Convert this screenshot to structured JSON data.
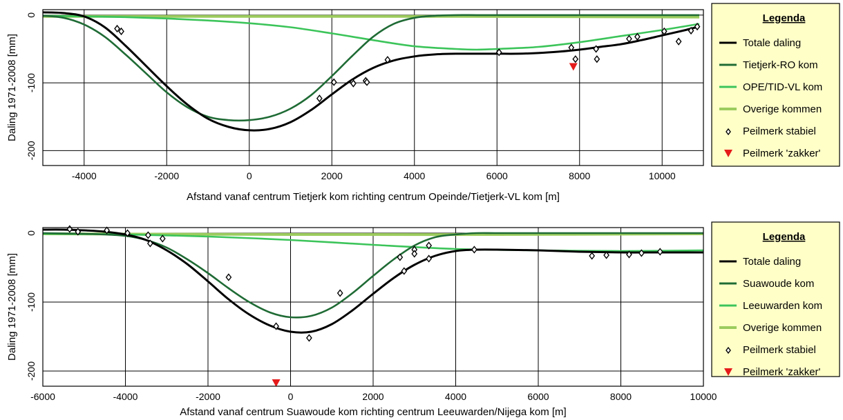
{
  "chart_data": [
    {
      "type": "line",
      "xlabel": "Afstand vanaf centrum Tietjerk kom richting centrum Opeinde/Tietjerk-VL kom [m]",
      "ylabel": "Daling 1971-2008 [mm]",
      "xlim": [
        -5000,
        11000
      ],
      "ylim": [
        -222,
        8
      ],
      "xticks": [
        -4000,
        -2000,
        0,
        2000,
        4000,
        6000,
        8000,
        10000
      ],
      "yticks": [
        0,
        -100,
        -200
      ],
      "ytick_labels": [
        "0",
        "-100",
        "-200"
      ],
      "grid": true,
      "legend_position": "right",
      "legend": {
        "title": "Legenda",
        "entries": [
          "Totale daling",
          "Tietjerk-RO kom",
          "OPE/TID-VL kom",
          "Overige kommen",
          "Peilmerk stabiel",
          "Peilmerk 'zakker'"
        ]
      },
      "series": [
        {
          "name": "Totale daling",
          "color": "#000000",
          "x": [
            -5000,
            -4500,
            -4000,
            -3500,
            -3000,
            -2500,
            -2000,
            -1500,
            -1000,
            -500,
            0,
            500,
            1000,
            1500,
            2000,
            2500,
            3000,
            3500,
            4000,
            4500,
            5000,
            5500,
            6000,
            6500,
            7000,
            7500,
            8000,
            8500,
            9000,
            9500,
            10000,
            10500,
            10900
          ],
          "values": [
            4,
            3,
            -2,
            -18,
            -45,
            -75,
            -105,
            -132,
            -153,
            -165,
            -170,
            -168,
            -158,
            -140,
            -117,
            -95,
            -78,
            -67,
            -61,
            -58,
            -57,
            -57,
            -57,
            -57,
            -56,
            -54,
            -51,
            -47,
            -43,
            -37,
            -30,
            -23,
            -17
          ]
        },
        {
          "name": "Tietjerk-RO kom",
          "color": "#1f6b35",
          "x": [
            -5000,
            -4500,
            -4000,
            -3500,
            -3000,
            -2500,
            -2000,
            -1500,
            -1000,
            -500,
            0,
            500,
            1000,
            1500,
            2000,
            2500,
            3000,
            3500,
            4000,
            4500,
            5000,
            5500,
            6000,
            7000,
            8000,
            9000,
            10000,
            10900
          ],
          "values": [
            -1,
            -4,
            -14,
            -32,
            -58,
            -86,
            -114,
            -136,
            -150,
            -155,
            -155,
            -150,
            -138,
            -118,
            -90,
            -60,
            -32,
            -13,
            -4,
            -1,
            0,
            0,
            0,
            0,
            0,
            0,
            0,
            0
          ]
        },
        {
          "name": "OPE/TID-VL kom",
          "color": "#3cc45a",
          "x": [
            -5000,
            -4000,
            -3000,
            -2000,
            -1000,
            0,
            1000,
            2000,
            3000,
            4000,
            5000,
            5500,
            6000,
            7000,
            8000,
            9000,
            10000,
            10900
          ],
          "values": [
            -1,
            -2,
            -3,
            -5,
            -8,
            -12,
            -18,
            -27,
            -37,
            -46,
            -50,
            -51,
            -50,
            -47,
            -40,
            -31,
            -22,
            -13
          ]
        },
        {
          "name": "Overige kommen",
          "color": "#9ccc5e",
          "x": [
            -5000,
            0,
            5000,
            10900
          ],
          "values": [
            -2,
            -2,
            -2,
            -3
          ]
        }
      ],
      "points_stabiel": {
        "name": "Peilmerk stabiel",
        "x": [
          -3200,
          -3100,
          1700,
          2050,
          2500,
          2520,
          2820,
          2850,
          3350,
          6050,
          7800,
          7900,
          8400,
          8420,
          9200,
          9400,
          10050,
          10400,
          10700,
          10850
        ],
        "values": [
          -20,
          -24,
          -123,
          -99,
          -99,
          -101,
          -97,
          -99,
          -66,
          -55,
          -48,
          -65,
          -50,
          -65,
          -35,
          -32,
          -24,
          -39,
          -23,
          -17
        ]
      },
      "points_zakker": {
        "name": "Peilmerk 'zakker'",
        "x": [
          7850
        ],
        "values": [
          -76
        ]
      }
    },
    {
      "type": "line",
      "xlabel": "Afstand vanaf centrum Suawoude kom richting centrum Leeuwarden/Nijega kom [m]",
      "ylabel": "Daling 1971-2008 [mm]",
      "xlim": [
        -6000,
        10000
      ],
      "ylim": [
        -222,
        8
      ],
      "xticks": [
        -6000,
        -4000,
        -2000,
        0,
        2000,
        4000,
        6000,
        8000,
        10000
      ],
      "yticks": [
        0,
        -100,
        -200
      ],
      "ytick_labels": [
        "0",
        "-100",
        "-200"
      ],
      "grid": true,
      "legend_position": "right",
      "legend": {
        "title": "Legenda",
        "entries": [
          "Totale daling",
          "Suawoude kom",
          "Leeuwarden kom",
          "Overige kommen",
          "Peilmerk stabiel",
          "Peilmerk 'zakker'"
        ]
      },
      "series": [
        {
          "name": "Totale daling",
          "color": "#000000",
          "x": [
            -6000,
            -5500,
            -5000,
            -4500,
            -4000,
            -3500,
            -3000,
            -2500,
            -2000,
            -1500,
            -1000,
            -500,
            0,
            500,
            1000,
            1500,
            2000,
            2500,
            3000,
            3500,
            4000,
            4500,
            5000,
            6000,
            7000,
            8000,
            9000,
            10000
          ],
          "values": [
            5,
            5,
            4,
            2,
            -2,
            -10,
            -25,
            -45,
            -70,
            -96,
            -118,
            -134,
            -143,
            -143,
            -132,
            -112,
            -88,
            -65,
            -46,
            -33,
            -26,
            -24,
            -24,
            -25,
            -27,
            -28,
            -28,
            -28
          ]
        },
        {
          "name": "Suawoude kom",
          "color": "#1f6b35",
          "x": [
            -6000,
            -5000,
            -4500,
            -4000,
            -3500,
            -3000,
            -2500,
            -2000,
            -1500,
            -1000,
            -500,
            0,
            500,
            1000,
            1500,
            2000,
            2500,
            3000,
            3500,
            4000,
            4500,
            5000,
            6000,
            8000,
            10000
          ],
          "values": [
            0,
            -1,
            -2,
            -4,
            -10,
            -21,
            -38,
            -58,
            -80,
            -100,
            -115,
            -122,
            -120,
            -108,
            -87,
            -62,
            -38,
            -18,
            -6,
            -2,
            0,
            0,
            0,
            0,
            0
          ]
        },
        {
          "name": "Leeuwarden kom",
          "color": "#3cc45a",
          "x": [
            -6000,
            -4000,
            -2000,
            0,
            2000,
            4000,
            6000,
            8000,
            10000
          ],
          "values": [
            -1,
            -2,
            -5,
            -10,
            -17,
            -23,
            -25,
            -26,
            -25
          ]
        },
        {
          "name": "Overige kommen",
          "color": "#9ccc5e",
          "x": [
            -6000,
            0,
            5000,
            10000
          ],
          "values": [
            -1,
            -2,
            -2,
            -1
          ]
        }
      ],
      "points_stabiel": {
        "name": "Peilmerk stabiel",
        "x": [
          -5350,
          -5150,
          -4450,
          -3950,
          -3450,
          -3400,
          -3100,
          -1500,
          -350,
          450,
          1200,
          2650,
          2750,
          3000,
          3000,
          3350,
          3350,
          4450,
          7300,
          7650,
          8200,
          8500,
          8950
        ],
        "values": [
          6,
          2,
          4,
          0,
          -3,
          -15,
          -8,
          -64,
          -135,
          -152,
          -87,
          -35,
          -55,
          -24,
          -30,
          -18,
          -37,
          -24,
          -33,
          -32,
          -31,
          -29,
          -27
        ]
      },
      "points_zakker": {
        "name": "Peilmerk 'zakker'",
        "x": [
          -350
        ],
        "values": [
          -217
        ]
      }
    }
  ]
}
